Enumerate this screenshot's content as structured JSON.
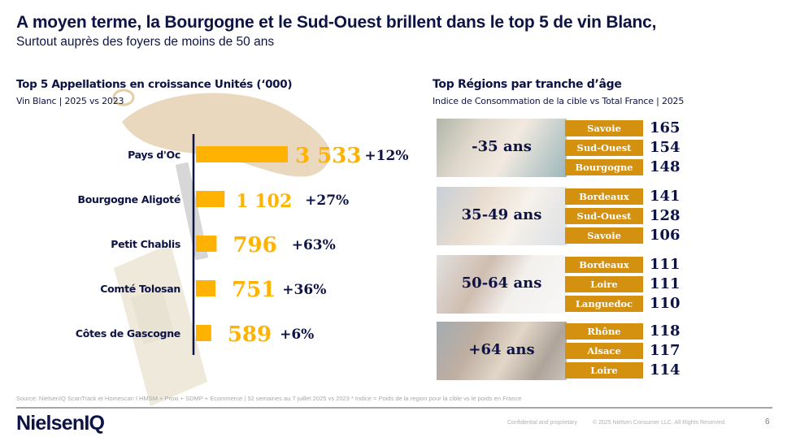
{
  "header": {
    "title": "A moyen terme, la Bourgogne et le Sud-Ouest brillent dans le top 5 de vin Blanc,",
    "subtitle": "Surtout auprès des foyers de moins de 50 ans"
  },
  "colors": {
    "navy": "#0d1445",
    "bar_gold": "#ffb300",
    "region_gold": "#d4900f",
    "footer_grey": "#a9a9a9"
  },
  "chart_data": {
    "type": "bar",
    "orientation": "horizontal",
    "title": "Top 5 Appellations en croissance Unités (‘000)",
    "subtitle": "Vin Blanc | 2025 vs 2023",
    "categories": [
      "Pays d'Oc",
      "Bourgogne Aligoté",
      "Petit Chablis",
      "Comté Tolosan",
      "Côtes de Gascogne"
    ],
    "values": [
      3533,
      1102,
      796,
      751,
      589
    ],
    "value_labels": [
      "3 533",
      "1 102",
      "796",
      "751",
      "589"
    ],
    "growth_labels": [
      "+12%",
      "+27%",
      "+63%",
      "+36%",
      "+6%"
    ],
    "xlim": [
      0,
      3533
    ],
    "grid": false,
    "legend": "none"
  },
  "regions": {
    "title": "Top Régions par tranche d’âge",
    "subtitle": "Indice de Consommation de la cible vs Total France | 2025",
    "groups": [
      {
        "age": "-35 ans",
        "photo": "young-women-cafe-photo",
        "items": [
          {
            "region": "Savoie",
            "index": "165"
          },
          {
            "region": "Sud-Ouest",
            "index": "154"
          },
          {
            "region": "Bourgogne",
            "index": "148"
          }
        ]
      },
      {
        "age": "35-49 ans",
        "photo": "friends-toasting-photo",
        "items": [
          {
            "region": "Bordeaux",
            "index": "141"
          },
          {
            "region": "Sud-Ouest",
            "index": "128"
          },
          {
            "region": "Savoie",
            "index": "106"
          }
        ]
      },
      {
        "age": "50-64 ans",
        "photo": "couple-kitchen-photo",
        "items": [
          {
            "region": "Bordeaux",
            "index": "111"
          },
          {
            "region": "Loire",
            "index": "111"
          },
          {
            "region": "Languedoc",
            "index": "110"
          }
        ]
      },
      {
        "age": "+64 ans",
        "photo": "wine-shop-photo",
        "items": [
          {
            "region": "Rhône",
            "index": "118"
          },
          {
            "region": "Alsace",
            "index": "117"
          },
          {
            "region": "Loire",
            "index": "114"
          }
        ]
      }
    ]
  },
  "footer": {
    "source": "Source: NielsenIQ ScanTrack et Homescan  I HMSM + Proxi + SDMP + Ecommerce | 52 semaines au 7 juillet 2025 vs 2023 *  Indice = Poids de la region pour la cible vs le poids en France",
    "logo": "NielsenIQ",
    "confidential": "Confidential and proprietary",
    "copyright": "© 2025 Nielsen Consumer LLC. All Rights Reserved.",
    "page_number": "6"
  }
}
